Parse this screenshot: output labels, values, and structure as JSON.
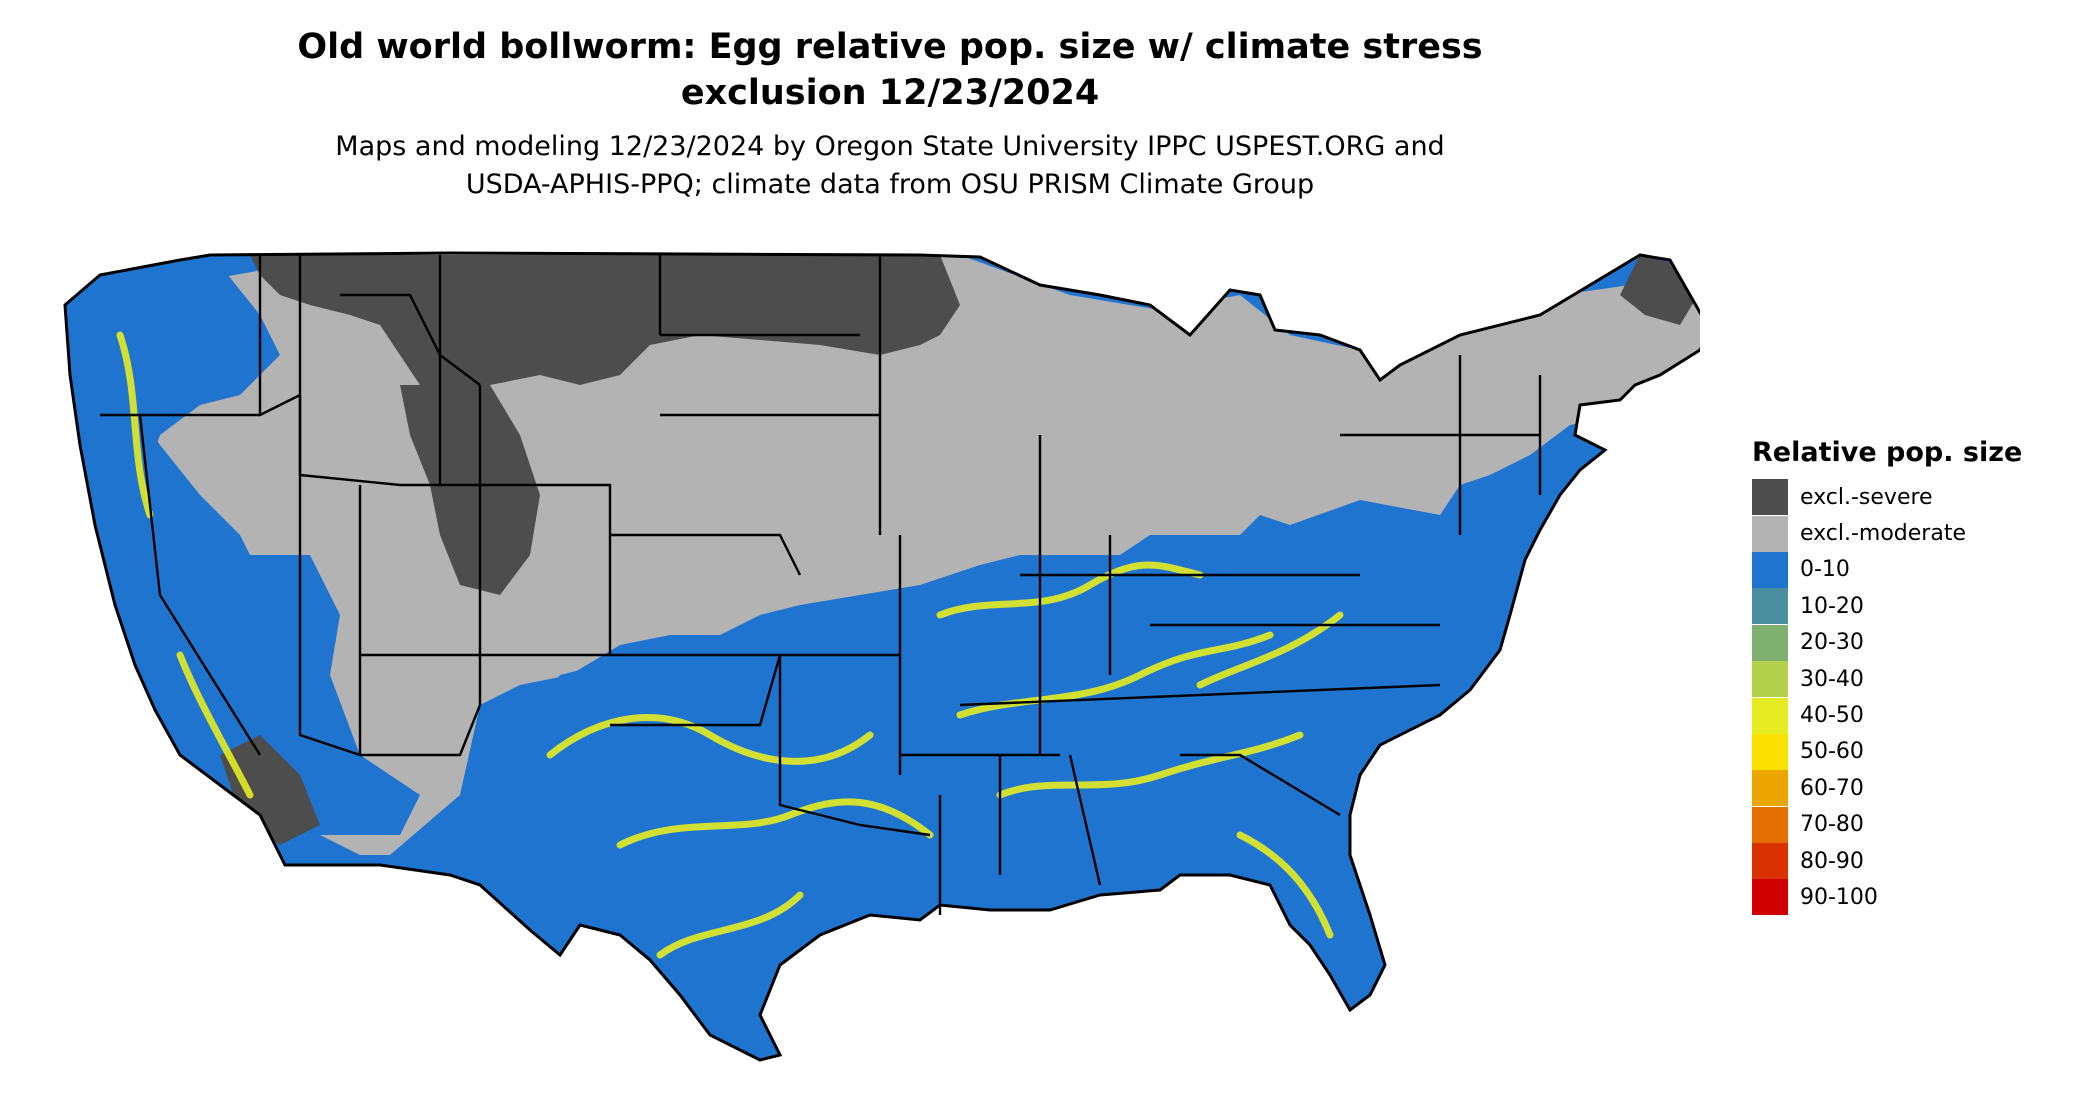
{
  "title_lines": [
    "Old world bollworm: Egg relative pop. size w/ climate stress",
    "exclusion 12/23/2024"
  ],
  "subtitle_lines": [
    "Maps and modeling 12/23/2024 by Oregon State University IPPC USPEST.ORG and",
    "USDA-APHIS-PPQ; climate data from OSU PRISM Climate Group"
  ],
  "legend": {
    "title": "Relative pop. size",
    "items": [
      {
        "label": "excl.-severe",
        "color": "#4d4d4d"
      },
      {
        "label": "excl.-moderate",
        "color": "#b3b3b3"
      },
      {
        "label": "0-10",
        "color": "#1f74d0"
      },
      {
        "label": "10-20",
        "color": "#4a8ea0"
      },
      {
        "label": "20-30",
        "color": "#7fb070"
      },
      {
        "label": "30-40",
        "color": "#b4d04a"
      },
      {
        "label": "40-50",
        "color": "#e6ec22"
      },
      {
        "label": "50-60",
        "color": "#fae100"
      },
      {
        "label": "60-70",
        "color": "#eda500"
      },
      {
        "label": "70-80",
        "color": "#e56e00"
      },
      {
        "label": "80-90",
        "color": "#d93200"
      },
      {
        "label": "90-100",
        "color": "#d10000"
      }
    ]
  },
  "map": {
    "region": "conterminous-us",
    "colors": {
      "severe": "#4d4d4d",
      "moderate": "#b3b3b3",
      "low": "#1f74d0",
      "hot": "#e6ec22",
      "border": "#000000"
    }
  }
}
